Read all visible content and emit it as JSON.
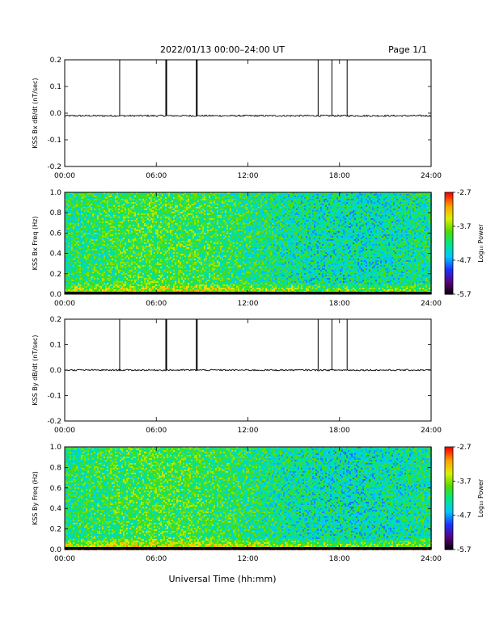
{
  "header": {
    "title": "2022/01/13  00:00–24:00 UT",
    "page": "Page 1/1"
  },
  "colors": {
    "axis": "#000000",
    "trace": "#000000",
    "colormap": [
      "#000000",
      "#5a0080",
      "#1e32ff",
      "#00c8ff",
      "#00e68c",
      "#50dc00",
      "#dcf000",
      "#ffa000",
      "#ff0000"
    ]
  },
  "footer": {
    "xlabel": "Universal Time (hh:mm)"
  },
  "chart_data": [
    {
      "type": "line",
      "ylabel": "KSS Bx dB/dt (nT/sec)",
      "xlim": [
        0,
        24
      ],
      "ylim": [
        -0.2,
        0.2
      ],
      "xticks": [
        "00:00",
        "06:00",
        "12:00",
        "18:00",
        "24:00"
      ],
      "yticks": [
        "0.2",
        "0.1",
        "0.0",
        "-0.1",
        "-0.2"
      ],
      "baseline": -0.01,
      "spikes": [
        {
          "x": 3.6,
          "y": 0.2
        },
        {
          "x": 6.65,
          "y": 0.2
        },
        {
          "x": 8.65,
          "y": 0.2
        },
        {
          "x": 16.6,
          "y": 0.2
        },
        {
          "x": 17.5,
          "y": 0.2
        },
        {
          "x": 18.5,
          "y": 0.2
        }
      ]
    },
    {
      "type": "heatmap",
      "ylabel": "KSS Bx Freq (Hz)",
      "xlim": [
        0,
        24
      ],
      "ylim": [
        0,
        1.0
      ],
      "xticks": [
        "00:00",
        "06:00",
        "12:00",
        "18:00",
        "24:00"
      ],
      "yticks": [
        "1.0",
        "0.8",
        "0.6",
        "0.4",
        "0.2",
        "0.0"
      ],
      "colorbar": {
        "label": "Log₁₀ Power",
        "ticks": [
          "-2.7",
          "-3.7",
          "-4.7",
          "-5.7"
        ],
        "range": [
          -5.7,
          -2.7
        ]
      }
    },
    {
      "type": "line",
      "ylabel": "KSS By dB/dt (nT/sec)",
      "xlim": [
        0,
        24
      ],
      "ylim": [
        -0.2,
        0.2
      ],
      "xticks": [
        "00:00",
        "06:00",
        "12:00",
        "18:00",
        "24:00"
      ],
      "yticks": [
        "0.2",
        "0.1",
        "0.0",
        "-0.1",
        "-0.2"
      ],
      "baseline": 0.0,
      "spikes": [
        {
          "x": 3.6,
          "y": 0.2
        },
        {
          "x": 6.65,
          "y": 0.2
        },
        {
          "x": 8.65,
          "y": 0.2
        },
        {
          "x": 16.6,
          "y": 0.2
        },
        {
          "x": 17.5,
          "y": 0.2
        },
        {
          "x": 18.5,
          "y": 0.2
        }
      ]
    },
    {
      "type": "heatmap",
      "ylabel": "KSS By Freq (Hz)",
      "xlim": [
        0,
        24
      ],
      "ylim": [
        0,
        1.0
      ],
      "xticks": [
        "00:00",
        "06:00",
        "12:00",
        "18:00",
        "24:00"
      ],
      "yticks": [
        "1.0",
        "0.8",
        "0.6",
        "0.4",
        "0.2",
        "0.0"
      ],
      "colorbar": {
        "label": "Log₁₀ Power",
        "ticks": [
          "-2.7",
          "-3.7",
          "-4.7",
          "-5.7"
        ],
        "range": [
          -5.7,
          -2.7
        ]
      }
    }
  ]
}
